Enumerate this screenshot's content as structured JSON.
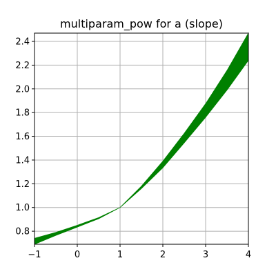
{
  "chart_data": {
    "type": "area",
    "title": "multiparam_pow for a (slope)",
    "xlabel": "",
    "ylabel": "",
    "xlim": [
      -1,
      4
    ],
    "ylim": [
      0.69,
      2.47
    ],
    "grid": true,
    "legend": "none",
    "x_ticks": [
      "−1",
      "0",
      "1",
      "2",
      "3",
      "4"
    ],
    "x_tick_values": [
      -1,
      0,
      1,
      2,
      3,
      4
    ],
    "y_ticks": [
      "0.8",
      "1.0",
      "1.2",
      "1.4",
      "1.6",
      "1.8",
      "2.0",
      "2.2",
      "2.4"
    ],
    "y_tick_values": [
      0.8,
      1.0,
      1.2,
      1.4,
      1.6,
      1.8,
      2.0,
      2.2,
      2.4
    ],
    "series": [
      {
        "fill_color": "#008000",
        "x": [
          -1.0,
          -0.5,
          0.0,
          0.5,
          1.0,
          1.5,
          2.0,
          2.5,
          3.0,
          3.5,
          4.0
        ],
        "lower": [
          0.69,
          0.765,
          0.835,
          0.905,
          1.0,
          1.16,
          1.335,
          1.545,
          1.76,
          1.99,
          2.24
        ],
        "upper": [
          0.74,
          0.79,
          0.85,
          0.915,
          1.0,
          1.18,
          1.39,
          1.625,
          1.875,
          2.155,
          2.47
        ]
      }
    ],
    "colors": {
      "grid": "#b0b0b0",
      "axes": "#000000",
      "background": "#ffffff"
    }
  }
}
